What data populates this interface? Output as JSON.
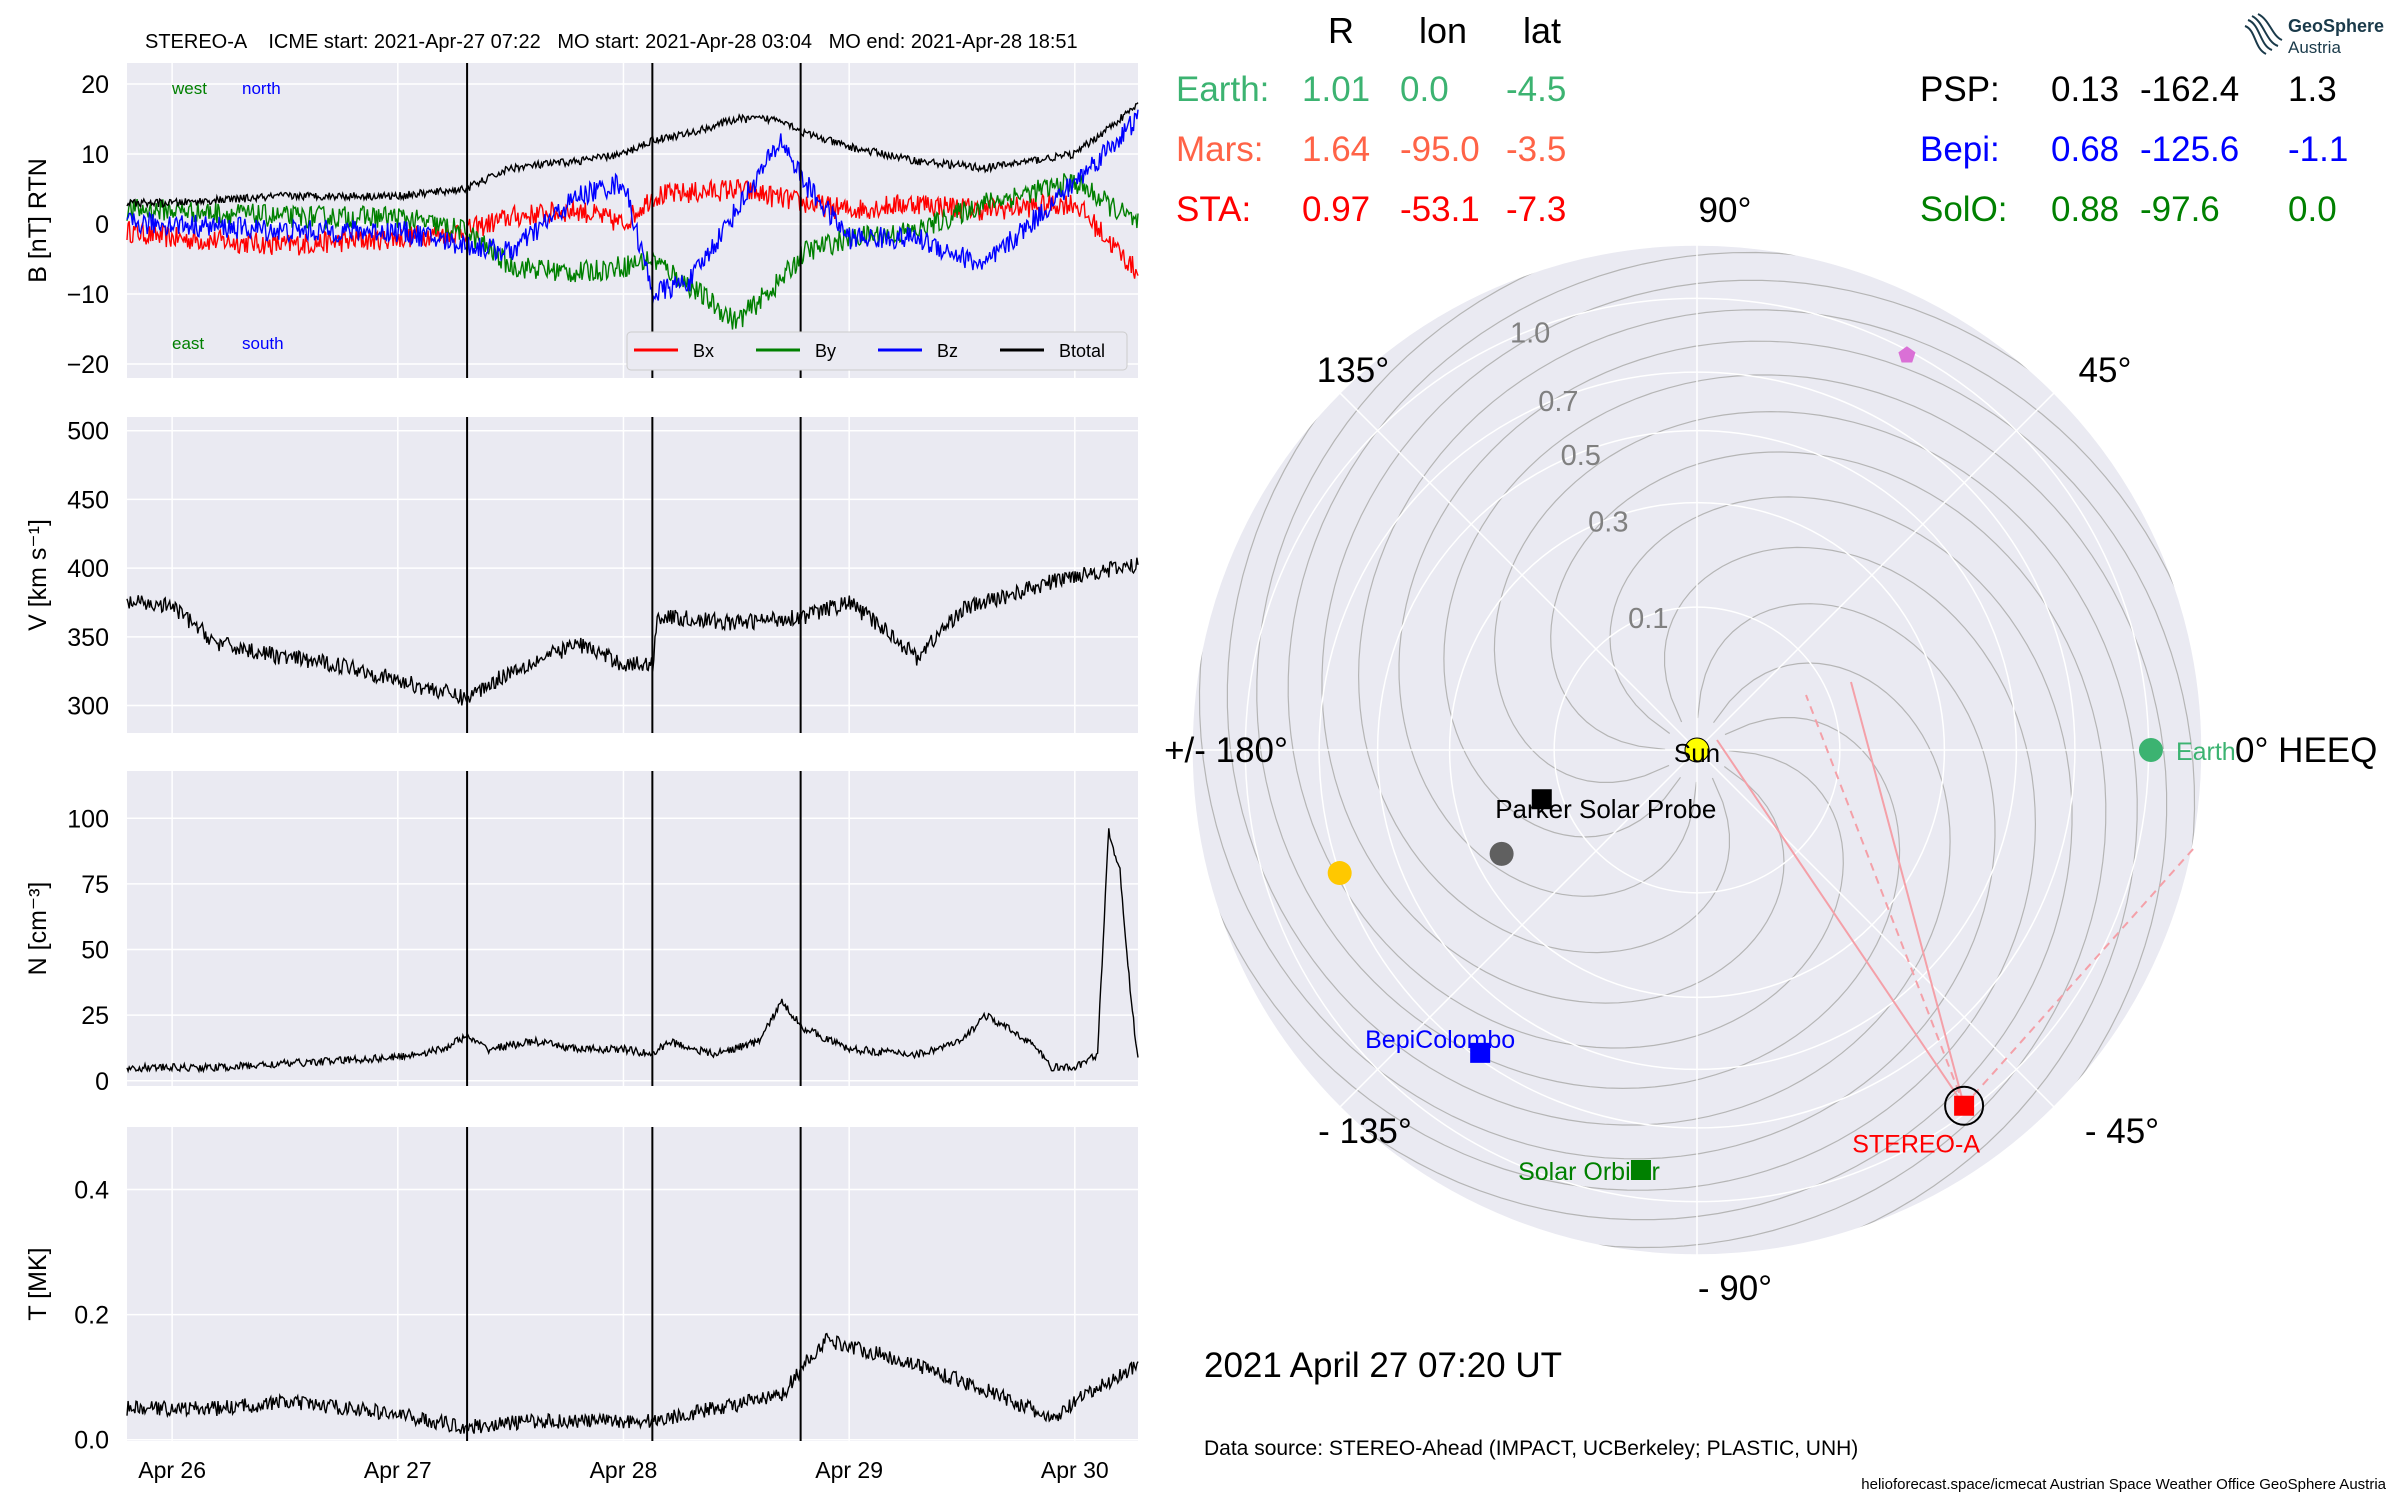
{
  "title_line": "STEREO-A    ICME start: 2021-Apr-27 07:22   MO start: 2021-Apr-28 03:04   MO end: 2021-Apr-28 18:51",
  "logo": {
    "name": "GeoSphere",
    "sub": "Austria"
  },
  "date_stamp": "2021 April 27  07:20 UT",
  "data_source": "Data source: STEREO-Ahead (IMPACT, UCBerkeley; PLASTIC, UNH)",
  "footer": "helioforecast.space/icmecat   Austrian Space Weather Office   GeoSphere Austria",
  "colors": {
    "panel_bg": "#eaeaf2",
    "grid": "#ffffff",
    "bx": "#ff0000",
    "by": "#008000",
    "bz": "#0000ff",
    "btotal": "#000000",
    "earth": "#3cb371",
    "mars": "#ff6347",
    "sta": "#ff0000",
    "psp": "#000000",
    "bepi": "#0000ff",
    "solo": "#008000"
  },
  "positions_table": {
    "headers": [
      "R",
      "lon",
      "lat"
    ],
    "rows": [
      {
        "name": "Earth:",
        "R": "1.01",
        "lon": "0.0",
        "lat": "-4.5",
        "color": "#3cb371"
      },
      {
        "name": "Mars:",
        "R": "1.64",
        "lon": "-95.0",
        "lat": "-3.5",
        "color": "#ff6347"
      },
      {
        "name": "STA:",
        "R": "0.97",
        "lon": "-53.1",
        "lat": "-7.3",
        "color": "#ff0000"
      }
    ],
    "rows_right": [
      {
        "name": "PSP:",
        "R": "0.13",
        "lon": "-162.4",
        "lat": "1.3",
        "color": "#000000"
      },
      {
        "name": "Bepi:",
        "R": "0.68",
        "lon": "-125.6",
        "lat": "-1.1",
        "color": "#0000ff"
      },
      {
        "name": "SolO:",
        "R": "0.88",
        "lon": "-97.6",
        "lat": "0.0",
        "color": "#008000"
      }
    ]
  },
  "chart_data": [
    {
      "type": "line",
      "panel": "magnetic field",
      "ylabel": "B [nT] RTN",
      "ylim": [
        -22,
        23
      ],
      "yticks": [
        -20,
        -10,
        0,
        10,
        20
      ],
      "xlim_days": [
        25.8,
        30.28
      ],
      "annotations": {
        "top_left": [
          "west",
          "north"
        ],
        "bottom_left": [
          "east",
          "south"
        ]
      },
      "legend": {
        "placement": "lower-right",
        "entries": [
          "Bx",
          "By",
          "Bz",
          "Btotal"
        ]
      },
      "event_lines": [
        "2021-04-27 07:22",
        "2021-04-28 03:04",
        "2021-04-28 18:51"
      ],
      "series": [
        {
          "name": "Bx",
          "color": "#ff0000",
          "points": [
            [
              25.8,
              -1
            ],
            [
              26.0,
              -2
            ],
            [
              26.5,
              -3
            ],
            [
              27.0,
              -2
            ],
            [
              27.3,
              -1
            ],
            [
              27.5,
              1
            ],
            [
              27.8,
              2
            ],
            [
              28.0,
              0
            ],
            [
              28.13,
              4
            ],
            [
              28.5,
              5
            ],
            [
              28.8,
              3
            ],
            [
              29.0,
              2
            ],
            [
              29.3,
              3
            ],
            [
              29.6,
              2
            ],
            [
              30.0,
              3
            ],
            [
              30.28,
              -7
            ]
          ]
        },
        {
          "name": "By",
          "color": "#008000",
          "points": [
            [
              25.8,
              2
            ],
            [
              26.0,
              2
            ],
            [
              26.5,
              1
            ],
            [
              27.0,
              1
            ],
            [
              27.3,
              -1
            ],
            [
              27.5,
              -6
            ],
            [
              27.8,
              -7
            ],
            [
              28.0,
              -6
            ],
            [
              28.13,
              -5
            ],
            [
              28.3,
              -9
            ],
            [
              28.5,
              -14
            ],
            [
              28.7,
              -8
            ],
            [
              28.8,
              -4
            ],
            [
              29.0,
              -2
            ],
            [
              29.3,
              -1
            ],
            [
              29.6,
              3
            ],
            [
              30.0,
              6
            ],
            [
              30.28,
              0
            ]
          ]
        },
        {
          "name": "Bz",
          "color": "#0000ff",
          "points": [
            [
              25.8,
              0
            ],
            [
              26.0,
              0
            ],
            [
              26.5,
              -1
            ],
            [
              27.0,
              -1
            ],
            [
              27.3,
              -3
            ],
            [
              27.5,
              -4
            ],
            [
              27.8,
              4
            ],
            [
              28.0,
              6
            ],
            [
              28.13,
              -10
            ],
            [
              28.3,
              -8
            ],
            [
              28.5,
              2
            ],
            [
              28.7,
              12
            ],
            [
              28.8,
              6
            ],
            [
              29.0,
              -2
            ],
            [
              29.3,
              -2
            ],
            [
              29.6,
              -6
            ],
            [
              30.0,
              6
            ],
            [
              30.28,
              15
            ]
          ]
        },
        {
          "name": "Btotal",
          "color": "#000000",
          "points": [
            [
              25.8,
              3
            ],
            [
              26.0,
              3
            ],
            [
              26.5,
              4
            ],
            [
              27.0,
              4
            ],
            [
              27.3,
              5
            ],
            [
              27.5,
              8
            ],
            [
              27.8,
              9
            ],
            [
              28.0,
              10
            ],
            [
              28.13,
              12
            ],
            [
              28.3,
              13
            ],
            [
              28.5,
              15
            ],
            [
              28.7,
              15
            ],
            [
              28.8,
              13
            ],
            [
              29.0,
              11
            ],
            [
              29.3,
              9
            ],
            [
              29.6,
              8
            ],
            [
              30.0,
              10
            ],
            [
              30.28,
              17
            ]
          ]
        }
      ]
    },
    {
      "type": "line",
      "panel": "speed",
      "ylabel": "V [km s⁻¹]",
      "ylim": [
        280,
        510
      ],
      "yticks": [
        300,
        350,
        400,
        450,
        500
      ],
      "series": [
        {
          "name": "V",
          "color": "#000000",
          "points": [
            [
              25.8,
              375
            ],
            [
              26.0,
              372
            ],
            [
              26.2,
              345
            ],
            [
              26.5,
              335
            ],
            [
              26.8,
              328
            ],
            [
              27.0,
              318
            ],
            [
              27.2,
              310
            ],
            [
              27.3,
              305
            ],
            [
              27.5,
              325
            ],
            [
              27.8,
              345
            ],
            [
              28.0,
              330
            ],
            [
              28.13,
              330
            ],
            [
              28.15,
              365
            ],
            [
              28.5,
              360
            ],
            [
              28.8,
              365
            ],
            [
              29.0,
              375
            ],
            [
              29.2,
              350
            ],
            [
              29.3,
              335
            ],
            [
              29.5,
              370
            ],
            [
              29.8,
              385
            ],
            [
              30.0,
              395
            ],
            [
              30.28,
              402
            ]
          ]
        }
      ]
    },
    {
      "type": "line",
      "panel": "density",
      "ylabel": "N [cm⁻³]",
      "ylim": [
        -2,
        118
      ],
      "yticks": [
        0,
        25,
        50,
        75,
        100
      ],
      "series": [
        {
          "name": "N",
          "color": "#000000",
          "points": [
            [
              25.8,
              5
            ],
            [
              26.2,
              5
            ],
            [
              26.6,
              7
            ],
            [
              27.0,
              9
            ],
            [
              27.2,
              12
            ],
            [
              27.3,
              17
            ],
            [
              27.4,
              12
            ],
            [
              27.6,
              15
            ],
            [
              27.8,
              12
            ],
            [
              28.0,
              12
            ],
            [
              28.13,
              10
            ],
            [
              28.2,
              15
            ],
            [
              28.4,
              10
            ],
            [
              28.6,
              15
            ],
            [
              28.7,
              30
            ],
            [
              28.8,
              20
            ],
            [
              29.0,
              12
            ],
            [
              29.3,
              10
            ],
            [
              29.5,
              15
            ],
            [
              29.6,
              25
            ],
            [
              29.8,
              15
            ],
            [
              29.9,
              5
            ],
            [
              30.0,
              5
            ],
            [
              30.1,
              10
            ],
            [
              30.15,
              95
            ],
            [
              30.2,
              80
            ],
            [
              30.25,
              30
            ],
            [
              30.28,
              8
            ]
          ]
        }
      ]
    },
    {
      "type": "line",
      "panel": "temperature",
      "ylabel": "T [MK]",
      "ylim": [
        -0.002,
        0.5
      ],
      "yticks": [
        0.0,
        0.2,
        0.4
      ],
      "xticks": [
        "Apr 26",
        "Apr 27",
        "Apr 28",
        "Apr 29",
        "Apr 30"
      ],
      "series": [
        {
          "name": "T",
          "color": "#000000",
          "points": [
            [
              25.8,
              0.05
            ],
            [
              26.2,
              0.05
            ],
            [
              26.5,
              0.06
            ],
            [
              26.8,
              0.05
            ],
            [
              27.0,
              0.04
            ],
            [
              27.3,
              0.02
            ],
            [
              27.6,
              0.03
            ],
            [
              28.0,
              0.03
            ],
            [
              28.13,
              0.03
            ],
            [
              28.4,
              0.05
            ],
            [
              28.7,
              0.07
            ],
            [
              28.8,
              0.12
            ],
            [
              28.9,
              0.16
            ],
            [
              29.0,
              0.15
            ],
            [
              29.3,
              0.12
            ],
            [
              29.6,
              0.08
            ],
            [
              29.8,
              0.05
            ],
            [
              29.9,
              0.03
            ],
            [
              30.0,
              0.06
            ],
            [
              30.28,
              0.12
            ]
          ]
        }
      ]
    },
    {
      "type": "scatter",
      "panel": "polar position plot",
      "coordinate_system": "0° HEEQ",
      "angle_labels": [
        "0° HEEQ",
        "45°",
        "90°",
        "135°",
        "+/- 180°",
        "- 135°",
        "- 90°",
        "- 45°"
      ],
      "radial_labels": [
        "0.1",
        "0.3",
        "0.5",
        "0.7",
        "1.0"
      ],
      "bodies": [
        {
          "name": "Sun",
          "r": 0.0,
          "lon": 0,
          "marker": "circle",
          "color": "#ffff00",
          "label": "Sun"
        },
        {
          "name": "Earth",
          "r": 1.01,
          "lon": 0.0,
          "marker": "circle",
          "color": "#3cb371",
          "label": "Earth"
        },
        {
          "name": "STEREO-A",
          "r": 0.97,
          "lon": -53.1,
          "marker": "square",
          "color": "#ff0000",
          "label": "STEREO-A"
        },
        {
          "name": "Parker Solar Probe",
          "r": 0.13,
          "lon": -162.4,
          "marker": "square",
          "color": "#000000",
          "label": "Parker Solar Probe"
        },
        {
          "name": "BepiColombo",
          "r": 0.68,
          "lon": -125.6,
          "marker": "square",
          "color": "#0000ff",
          "label": "BepiColombo"
        },
        {
          "name": "Solar Orbiter",
          "r": 0.88,
          "lon": -97.6,
          "marker": "square",
          "color": "#008000",
          "label": "Solar Orbiter"
        },
        {
          "name": "Mercury",
          "r": 0.24,
          "lon": -152,
          "marker": "circle",
          "color": "#606060",
          "label": ""
        },
        {
          "name": "Venus",
          "r": 0.7,
          "lon": -161,
          "marker": "circle",
          "color": "#ffc800",
          "label": ""
        },
        {
          "name": "JUICE",
          "r": 0.98,
          "lon": 62,
          "marker": "pentagon",
          "color": "#da70d6",
          "label": ""
        }
      ]
    }
  ]
}
